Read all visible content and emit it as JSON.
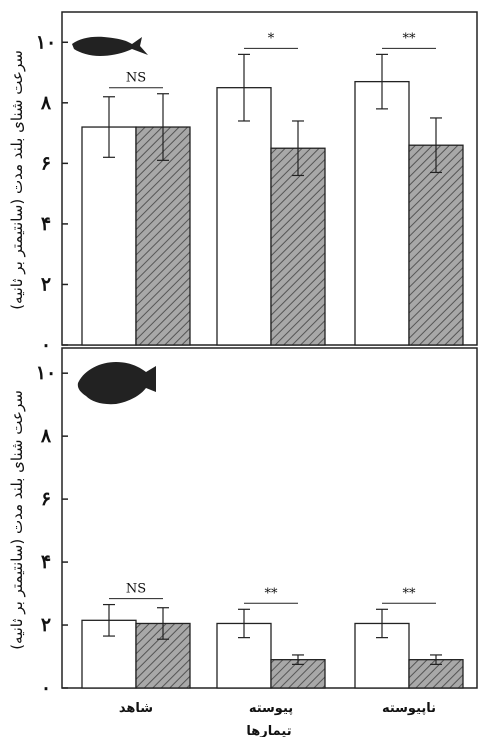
{
  "chart_data": [
    {
      "type": "bar",
      "ylabel": "سرعت شنای بلند مدت (سانتیمتر بر ثانیه)",
      "ylim": [
        0,
        11
      ],
      "yticks": [
        "۰",
        "۲",
        "۴",
        "۶",
        "۸",
        "۱۰"
      ],
      "categories": [
        "شاهد",
        "پیوسته",
        "ناپیوسته"
      ],
      "series": [
        {
          "fill": "white",
          "values": [
            7.2,
            8.5,
            8.7
          ],
          "errors": [
            1.0,
            1.1,
            0.9
          ]
        },
        {
          "fill": "hatched",
          "values": [
            7.2,
            6.5,
            6.6
          ],
          "errors": [
            1.1,
            0.9,
            0.9
          ]
        }
      ],
      "significance": [
        "NS",
        "*",
        "**"
      ],
      "icon": "slender-fish-icon"
    },
    {
      "type": "bar",
      "ylabel": "سرعت شنای بلند مدت (سانتیمتر بر ثانیه)",
      "ylim": [
        0,
        10.8
      ],
      "yticks": [
        "۰",
        "۲",
        "۴",
        "۶",
        "۸",
        "۱۰"
      ],
      "categories": [
        "شاهد",
        "پیوسته",
        "ناپیوسته"
      ],
      "xlabel": "تیمارها",
      "series": [
        {
          "fill": "white",
          "values": [
            2.15,
            2.05,
            2.05
          ],
          "errors": [
            0.5,
            0.45,
            0.45
          ]
        },
        {
          "fill": "hatched",
          "values": [
            2.05,
            0.9,
            0.9
          ],
          "errors": [
            0.5,
            0.15,
            0.15
          ]
        }
      ],
      "significance": [
        "NS",
        "**",
        "**"
      ],
      "icon": "cichlid-fish-icon"
    }
  ],
  "colors": {
    "hatch": "#9a9a9a",
    "axis": "#222222"
  }
}
